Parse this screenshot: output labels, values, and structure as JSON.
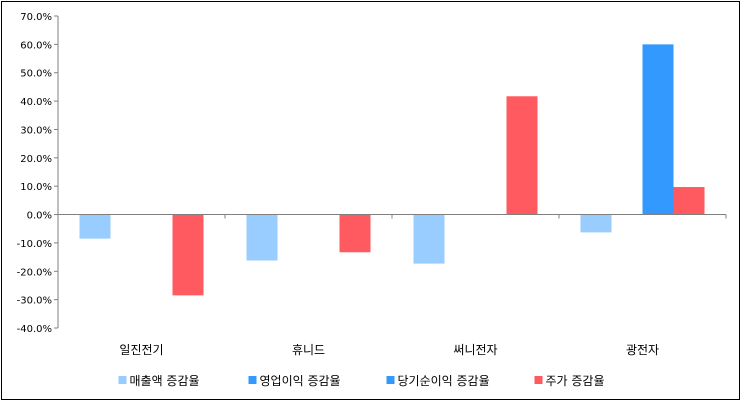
{
  "chart_data": {
    "type": "bar",
    "categories": [
      "일진전기",
      "휴니드",
      "써니전자",
      "광전자"
    ],
    "series": [
      {
        "name": "매출액 증감율",
        "color": "#99CCFF",
        "values": [
          -8.5,
          -16.2,
          -17.3,
          -6.3
        ]
      },
      {
        "name": "영업이익 증감율",
        "color": "#3399FF",
        "values": [
          null,
          null,
          null,
          null
        ]
      },
      {
        "name": "당기순이익 증감율",
        "color": "#3399FF",
        "values": [
          null,
          null,
          null,
          60.0
        ]
      },
      {
        "name": "주가 증감율",
        "color": "#FF5A5F",
        "values": [
          -28.5,
          -13.3,
          41.7,
          9.7
        ]
      }
    ],
    "ylim": [
      -40,
      70
    ],
    "yticks": [
      "-40.0%",
      "-30.0%",
      "-20.0%",
      "-10.0%",
      "0.0%",
      "10.0%",
      "20.0%",
      "30.0%",
      "40.0%",
      "50.0%",
      "60.0%",
      "70.0%"
    ],
    "grid": false,
    "legend_position": "bottom"
  }
}
